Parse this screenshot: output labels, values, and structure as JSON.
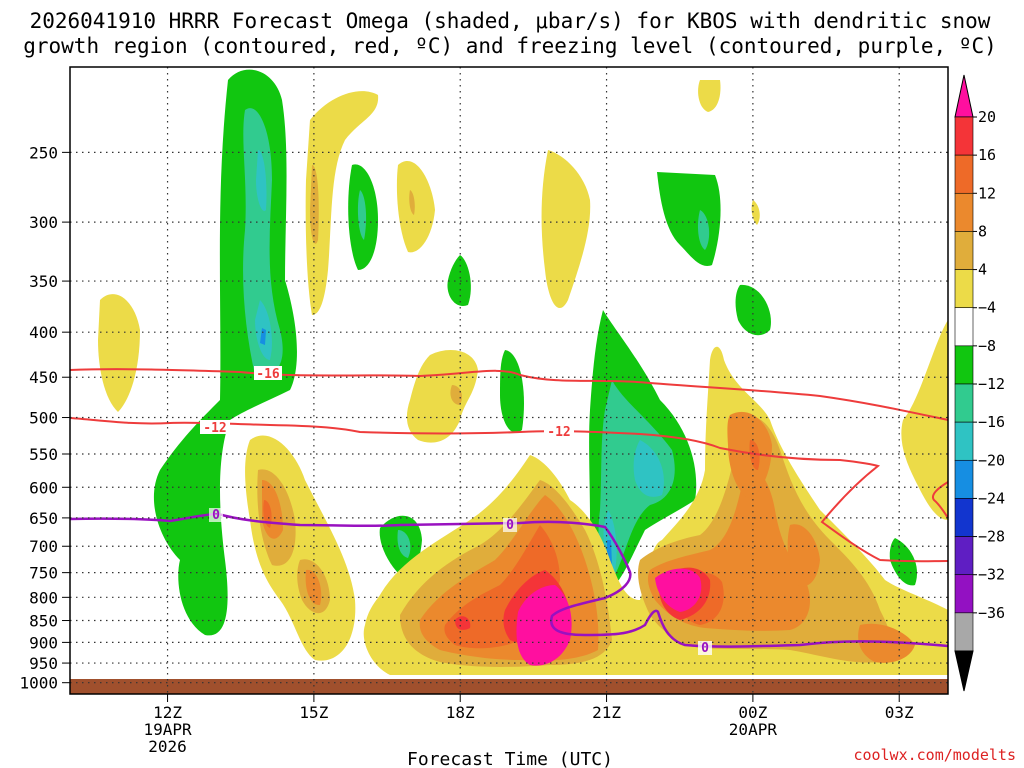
{
  "chart_data": {
    "type": "heatmap",
    "title_line1": "2026041910 HRRR Forecast Omega (shaded, μbar/s) for KBOS with dendritic snow",
    "title_line2": "growth region (contoured, red, ºC) and freezing level (contoured, purple, ºC)",
    "xlabel": "Forecast Time (UTC)",
    "ylabel": "",
    "credit": "coolwx.com/modelts",
    "x_ticks": [
      {
        "label": "12Z",
        "sub1": "19APR",
        "sub2": "2026",
        "hour": 12
      },
      {
        "label": "15Z",
        "sub1": "",
        "sub2": "",
        "hour": 15
      },
      {
        "label": "18Z",
        "sub1": "",
        "sub2": "",
        "hour": 18
      },
      {
        "label": "21Z",
        "sub1": "",
        "sub2": "",
        "hour": 21
      },
      {
        "label": "00Z",
        "sub1": "20APR",
        "sub2": "",
        "hour": 24
      },
      {
        "label": "03Z",
        "sub1": "",
        "sub2": "",
        "hour": 27
      }
    ],
    "xlim_hours": [
      10,
      28
    ],
    "y_ticks": [
      250,
      300,
      350,
      400,
      450,
      500,
      550,
      600,
      650,
      700,
      750,
      800,
      850,
      900,
      950,
      1000
    ],
    "ylim_hpa": [
      200,
      1030
    ],
    "colorbar_labels": [
      "20",
      "16",
      "12",
      "8",
      "4",
      "−4",
      "−8",
      "−12",
      "−16",
      "−20",
      "−24",
      "−28",
      "−32",
      "−36"
    ],
    "colorbar_colors": [
      "#ff0f9f",
      "#f43438",
      "#ee6a28",
      "#eb892d",
      "#e0ad3b",
      "#ecdb48",
      "#ffffff",
      "#11c610",
      "#31cb8f",
      "#2fc3c3",
      "#168ee2",
      "#1235cf",
      "#5f1ec3",
      "#9311c2",
      "#a8a8a8",
      "#000000"
    ],
    "contours": [
      {
        "name": "dgz_-16",
        "label": "-16",
        "color": "#ee3c3c",
        "value": -16
      },
      {
        "name": "dgz_-12",
        "label": "-12",
        "color": "#ee3c3c",
        "value": -12
      },
      {
        "name": "freezing_0",
        "label": "0",
        "color": "#9911c0",
        "value": 0
      }
    ],
    "omega_features": [
      {
        "level": "green",
        "color": "#11c610"
      },
      {
        "level": "teal",
        "color": "#31cb8f"
      },
      {
        "level": "cyan",
        "color": "#2fc3c3"
      },
      {
        "level": "blue",
        "color": "#168ee2"
      },
      {
        "level": "yellow",
        "color": "#ecdb48"
      },
      {
        "level": "gold",
        "color": "#e0ad3b"
      },
      {
        "level": "orange",
        "color": "#eb892d"
      },
      {
        "level": "dark-orange",
        "color": "#ee6a28"
      },
      {
        "level": "red",
        "color": "#f43438"
      },
      {
        "level": "magenta",
        "color": "#ff0f9f"
      }
    ],
    "terrain_color": "#a0502d"
  }
}
